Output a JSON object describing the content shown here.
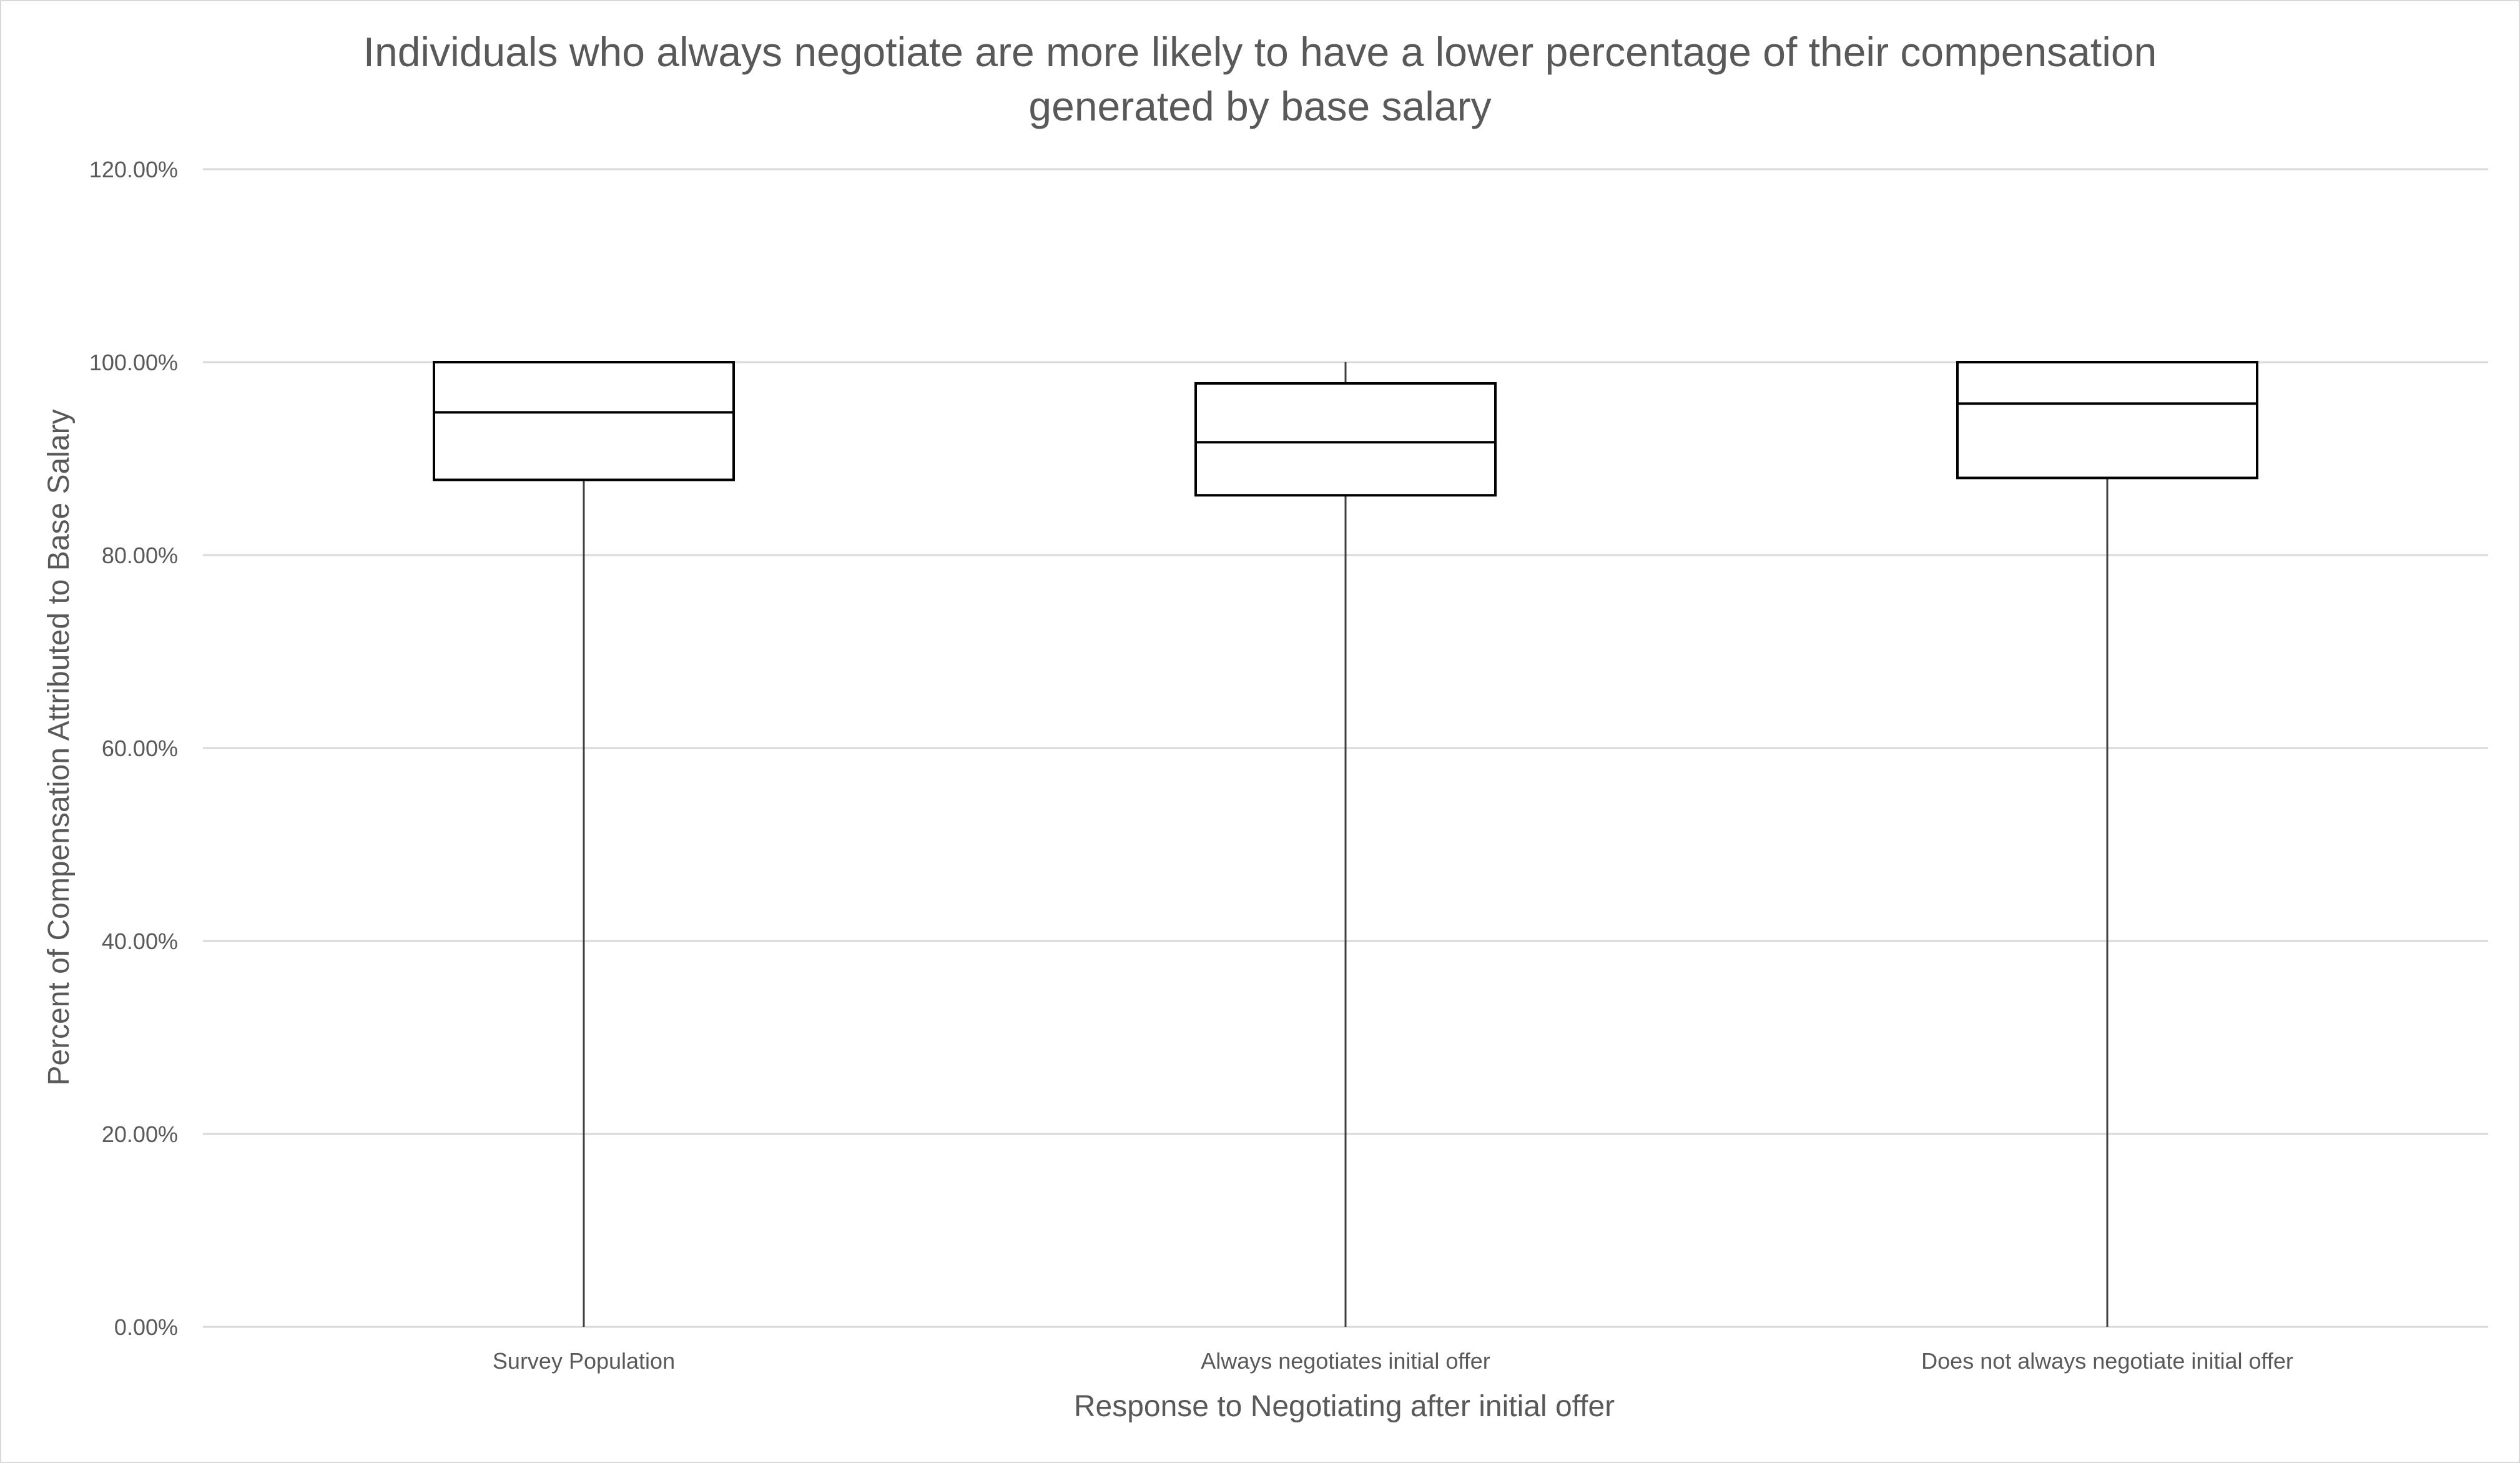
{
  "chart_data": {
    "type": "boxplot",
    "title_lines": [
      "Individuals who always negotiate are more likely to have a lower percentage of their compensation",
      "generated by base salary"
    ],
    "xlabel": "Response to Negotiating after initial offer",
    "ylabel": "Percent of Compensation Attributed to Base Salary",
    "ylim": [
      0,
      1.2
    ],
    "y_ticks": [
      {
        "value": 0.0,
        "label": "0.00%"
      },
      {
        "value": 0.2,
        "label": "20.00%"
      },
      {
        "value": 0.4,
        "label": "40.00%"
      },
      {
        "value": 0.6,
        "label": "60.00%"
      },
      {
        "value": 0.8,
        "label": "80.00%"
      },
      {
        "value": 1.0,
        "label": "100.00%"
      },
      {
        "value": 1.2,
        "label": "120.00%"
      }
    ],
    "grid": true,
    "legend": "none",
    "categories": [
      "Survey Population",
      "Always negotiates initial offer",
      "Does not always negotiate initial offer"
    ],
    "boxes": [
      {
        "min": 0.0,
        "q1": 0.878,
        "median": 0.948,
        "q3": 1.0,
        "max": 1.0
      },
      {
        "min": 0.0,
        "q1": 0.862,
        "median": 0.917,
        "q3": 0.978,
        "max": 1.0
      },
      {
        "min": 0.0,
        "q1": 0.88,
        "median": 0.957,
        "q3": 1.0,
        "max": 1.0
      }
    ],
    "colors": {
      "box_stroke": "#000000",
      "whisker": "#404040",
      "grid": "#d9d9d9",
      "text": "#595959"
    }
  }
}
